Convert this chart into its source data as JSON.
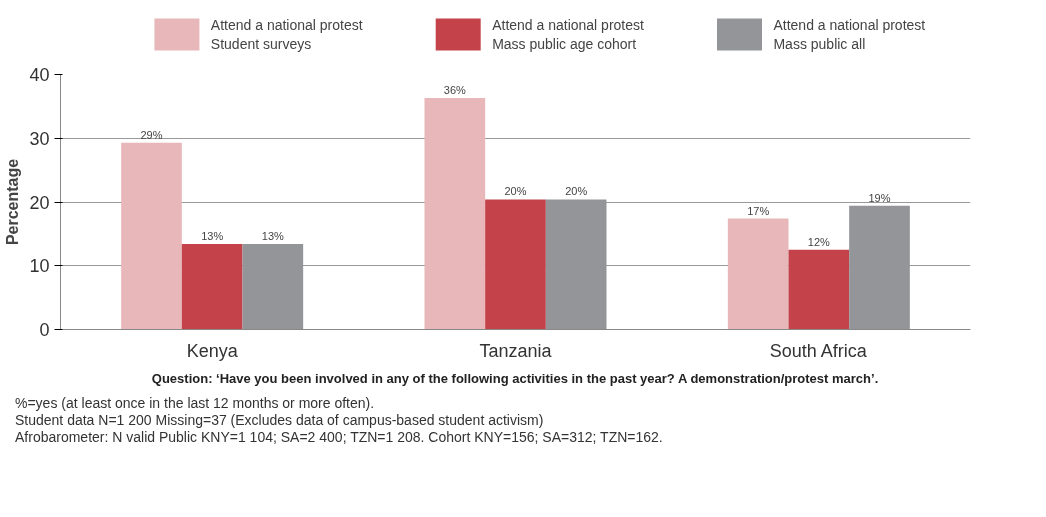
{
  "chart_data": {
    "type": "bar",
    "ylabel": "Percentage",
    "categories": [
      "Kenya",
      "Tanzania",
      "South Africa"
    ],
    "series": [
      {
        "name": "Attend a national protest\nStudent surveys",
        "color": "#e8b7ba",
        "values": [
          29.3,
          36.3,
          17.4
        ],
        "value_labels": [
          "29%",
          "36%",
          "17%"
        ]
      },
      {
        "name": "Attend a national protest\nMass public age cohort",
        "color": "#c4424a",
        "values": [
          13.4,
          20.4,
          12.5
        ],
        "value_labels": [
          "13%",
          "20%",
          "12%"
        ]
      },
      {
        "name": "Attend a national protest\nMass public all",
        "color": "#939598",
        "values": [
          13.4,
          20.4,
          19.4
        ],
        "value_labels": [
          "13%",
          "20%",
          "19%"
        ]
      }
    ],
    "ylim": [
      0,
      40
    ],
    "yticks": [
      0,
      10,
      20,
      30,
      40
    ],
    "grid": "y",
    "legend": "top",
    "annotations": [
      "Question: ‘Have you been involved in any of the following activities in the past year? A demonstration/protest march’.",
      "%=yes (at least once in the last 12 months or more often).",
      "Student data N=1 200 Missing=37 (Excludes data of campus-based student activism)",
      "Afrobarometer: N valid Public KNY=1 104; SA=2 400; TZN=1 208. Cohort KNY=156; SA=312; TZN=162."
    ]
  }
}
